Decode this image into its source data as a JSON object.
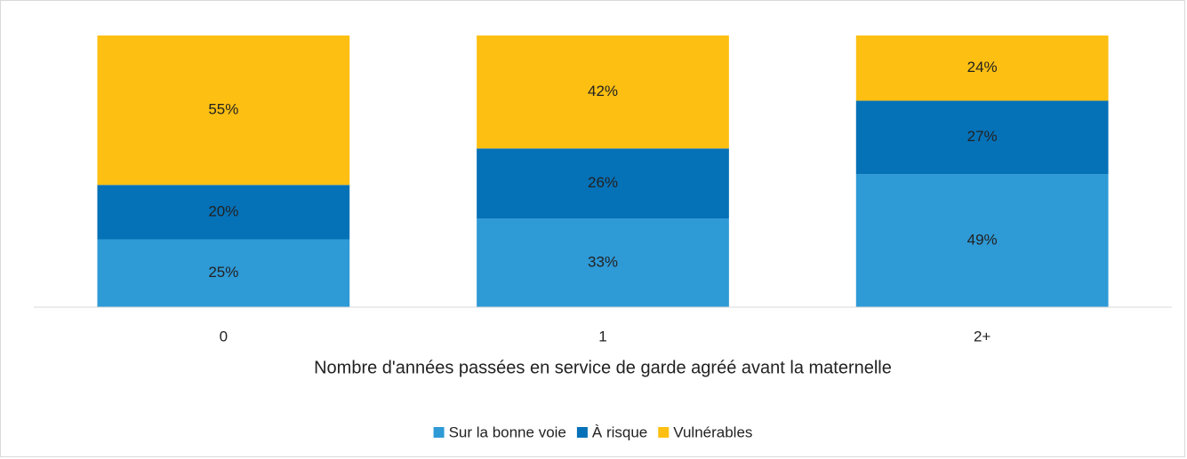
{
  "chart_data": {
    "type": "stacked_bar",
    "x_label": "Nombre d'années passées en service de garde agréé avant la maternelle",
    "categories": [
      "0",
      "1",
      "2+"
    ],
    "series": [
      {
        "name": "Sur la bonne voie",
        "color": "#2e9ad6",
        "values": [
          25,
          33,
          49
        ],
        "value_labels": [
          "25%",
          "33%",
          "49%"
        ]
      },
      {
        "name": "À risque",
        "color": "#0571b7",
        "values": [
          20,
          26,
          27
        ],
        "value_labels": [
          "20%",
          "26%",
          "27%"
        ]
      },
      {
        "name": "Vulnérables",
        "color": "#fdbf12",
        "values": [
          55,
          42,
          24
        ],
        "value_labels": [
          "55%",
          "42%",
          "24%"
        ]
      }
    ],
    "legend": "bottom"
  }
}
